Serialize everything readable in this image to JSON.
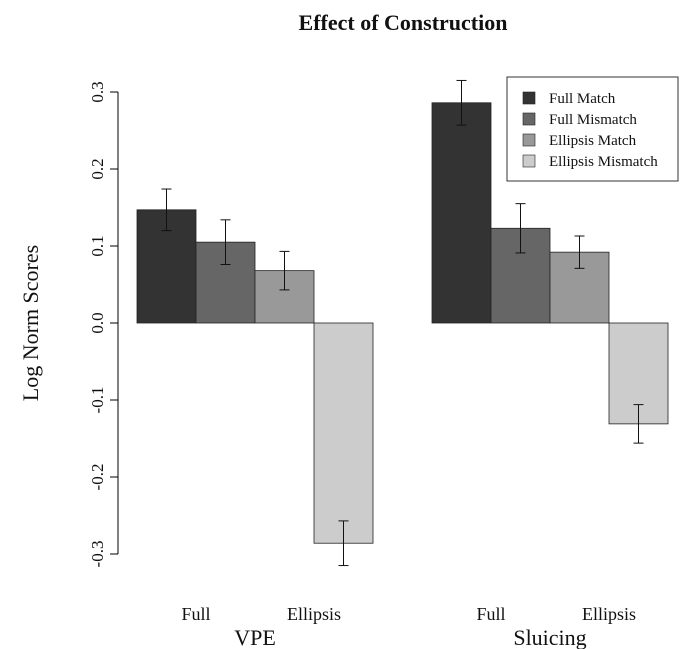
{
  "chart_data": {
    "type": "bar",
    "title": "Effect of Construction",
    "ylabel": "Log Norm Scores",
    "ylim": [
      -0.3,
      0.3
    ],
    "yticks": [
      "-0.3",
      "-0.2",
      "-0.1",
      "0.0",
      "0.1",
      "0.2",
      "0.3"
    ],
    "sub_labels": [
      "Full",
      "Ellipsis"
    ],
    "groups": [
      {
        "name": "VPE",
        "values": [
          0.147,
          0.105,
          0.068,
          -0.286
        ],
        "errors": [
          0.027,
          0.029,
          0.025,
          0.029
        ]
      },
      {
        "name": "Sluicing",
        "values": [
          0.286,
          0.123,
          0.092,
          -0.131
        ],
        "errors": [
          0.029,
          0.032,
          0.021,
          0.025
        ]
      }
    ],
    "series": [
      {
        "name": "Full Match",
        "color": "#333333"
      },
      {
        "name": "Full Mismatch",
        "color": "#666666"
      },
      {
        "name": "Ellipsis Match",
        "color": "#999999"
      },
      {
        "name": "Ellipsis Mismatch",
        "color": "#cccccc"
      }
    ],
    "legend": "top-right",
    "grid": false
  }
}
